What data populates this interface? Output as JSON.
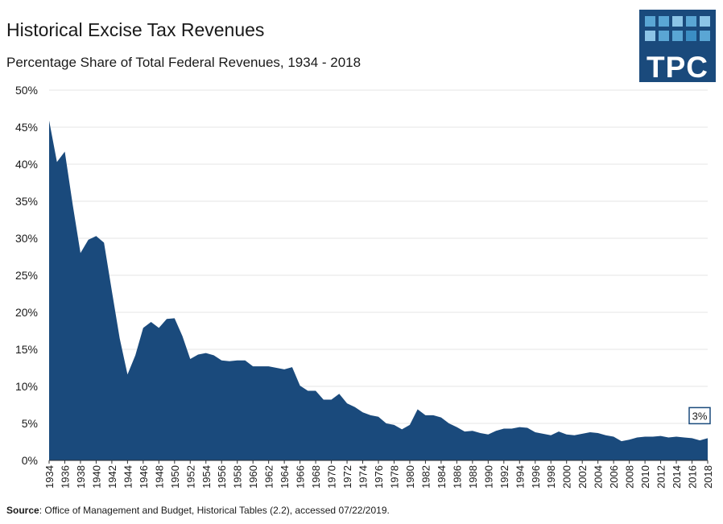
{
  "title": "Historical Excise Tax Revenues",
  "subtitle": "Percentage Share of Total Federal Revenues, 1934 - 2018",
  "logo": {
    "text": "TPC",
    "color": "#1a4a7c"
  },
  "source": {
    "label": "Source",
    "text": ": Office of Management and Budget, Historical Tables (2.2), accessed 07/22/2019."
  },
  "chart_data": {
    "type": "area",
    "title": "Historical Excise Tax Revenues",
    "subtitle": "Percentage Share of Total Federal Revenues, 1934 - 2018",
    "xlabel": "",
    "ylabel": "",
    "ylim": [
      0,
      50
    ],
    "yticks": [
      0,
      5,
      10,
      15,
      20,
      25,
      30,
      35,
      40,
      45,
      50
    ],
    "ytick_labels": [
      "0%",
      "5%",
      "10%",
      "15%",
      "20%",
      "25%",
      "30%",
      "35%",
      "40%",
      "45%",
      "50%"
    ],
    "xtick_labels": [
      "1934",
      "1936",
      "1938",
      "1940",
      "1942",
      "1944",
      "1946",
      "1948",
      "1950",
      "1952",
      "1954",
      "1956",
      "1958",
      "1960",
      "1962",
      "1964",
      "1966",
      "1968",
      "1970",
      "1972",
      "1974",
      "1976",
      "1978",
      "1980",
      "1982",
      "1984",
      "1986",
      "1988",
      "1990",
      "1992",
      "1994",
      "1996",
      "1998",
      "2000",
      "2002",
      "2004",
      "2006",
      "2008",
      "2010",
      "2012",
      "2014",
      "2016",
      "2018"
    ],
    "grid": true,
    "color": "#1a4a7c",
    "annotation": {
      "text": "3%",
      "year": 2018
    },
    "x": [
      1934,
      1935,
      1936,
      1937,
      1938,
      1939,
      1940,
      1941,
      1942,
      1943,
      1944,
      1945,
      1946,
      1947,
      1948,
      1949,
      1950,
      1951,
      1952,
      1953,
      1954,
      1955,
      1956,
      1957,
      1958,
      1959,
      1960,
      1961,
      1962,
      1963,
      1964,
      1965,
      1966,
      1967,
      1968,
      1969,
      1970,
      1971,
      1972,
      1973,
      1974,
      1975,
      1976,
      1977,
      1978,
      1979,
      1980,
      1981,
      1982,
      1983,
      1984,
      1985,
      1986,
      1987,
      1988,
      1989,
      1990,
      1991,
      1992,
      1993,
      1994,
      1995,
      1996,
      1997,
      1998,
      1999,
      2000,
      2001,
      2002,
      2003,
      2004,
      2005,
      2006,
      2007,
      2008,
      2009,
      2010,
      2011,
      2012,
      2013,
      2014,
      2015,
      2016,
      2017,
      2018
    ],
    "values": [
      45.9,
      40.3,
      41.7,
      34.6,
      28.0,
      29.8,
      30.3,
      29.4,
      22.9,
      16.5,
      11.6,
      14.2,
      17.9,
      18.7,
      17.9,
      19.1,
      19.2,
      16.8,
      13.7,
      14.3,
      14.5,
      14.2,
      13.5,
      13.4,
      13.5,
      13.5,
      12.7,
      12.7,
      12.7,
      12.5,
      12.3,
      12.6,
      10.1,
      9.4,
      9.4,
      8.2,
      8.2,
      9.0,
      7.7,
      7.2,
      6.5,
      6.1,
      5.9,
      5.0,
      4.8,
      4.2,
      4.8,
      6.9,
      6.1,
      6.1,
      5.8,
      5.0,
      4.5,
      3.9,
      4.0,
      3.7,
      3.5,
      4.0,
      4.3,
      4.3,
      4.5,
      4.4,
      3.8,
      3.6,
      3.4,
      3.9,
      3.5,
      3.4,
      3.6,
      3.8,
      3.7,
      3.4,
      3.2,
      2.6,
      2.8,
      3.1,
      3.2,
      3.2,
      3.3,
      3.1,
      3.2,
      3.1,
      3.0,
      2.7,
      3.0
    ]
  }
}
